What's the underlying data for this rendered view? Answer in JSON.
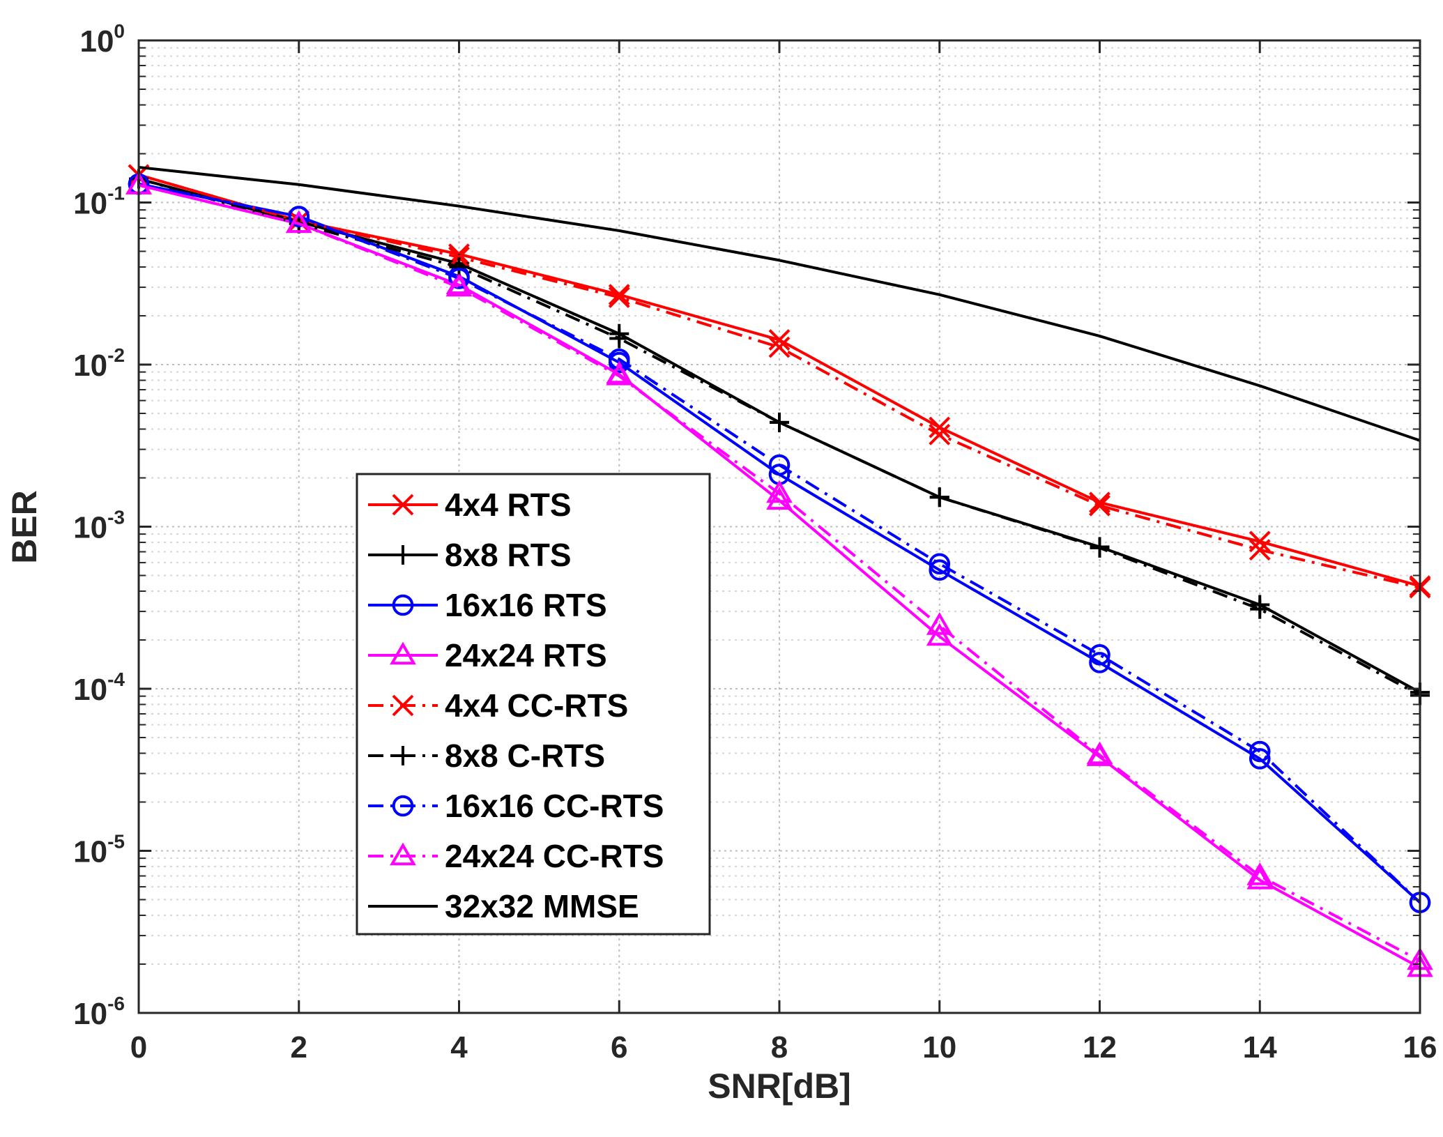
{
  "chart_data": {
    "type": "line",
    "yscale": "log",
    "xlabel": "SNR[dB]",
    "ylabel": "BER",
    "xlim": [
      0,
      16
    ],
    "ylim": [
      1e-06,
      1
    ],
    "x_ticks": [
      "0",
      "2",
      "4",
      "6",
      "8",
      "10",
      "12",
      "14",
      "16"
    ],
    "y_ticks": [
      {
        "base": "10",
        "exp": "-6"
      },
      {
        "base": "10",
        "exp": "-5"
      },
      {
        "base": "10",
        "exp": "-4"
      },
      {
        "base": "10",
        "exp": "-3"
      },
      {
        "base": "10",
        "exp": "-2"
      },
      {
        "base": "10",
        "exp": "-1"
      },
      {
        "base": "10",
        "exp": "0"
      }
    ],
    "grid": true,
    "legend_position": "center-left",
    "series": [
      {
        "name": "4x4 RTS",
        "color": "#ff0000",
        "dash": "solid",
        "marker": "x",
        "x": [
          0,
          2,
          4,
          6,
          8,
          10,
          12,
          14,
          16
        ],
        "values": [
          0.148,
          0.077,
          0.048,
          0.027,
          0.0142,
          0.0041,
          0.00141,
          0.00081,
          0.00043
        ]
      },
      {
        "name": "8x8 RTS",
        "color": "#000000",
        "dash": "solid",
        "marker": "plus",
        "x": [
          0,
          2,
          4,
          6,
          8,
          10,
          12,
          14,
          16
        ],
        "values": [
          0.14,
          0.076,
          0.042,
          0.0155,
          0.0044,
          0.00152,
          0.00075,
          0.00033,
          9.5e-05
        ]
      },
      {
        "name": "16x16 RTS",
        "color": "#0000ff",
        "dash": "solid",
        "marker": "circle",
        "x": [
          0,
          2,
          4,
          6,
          8,
          10,
          12,
          14,
          16
        ],
        "values": [
          0.13,
          0.082,
          0.035,
          0.0103,
          0.0021,
          0.00054,
          0.000145,
          3.7e-05,
          4.8e-06
        ]
      },
      {
        "name": "24x24 RTS",
        "color": "#ff00ff",
        "dash": "solid",
        "marker": "triangle",
        "x": [
          0,
          2,
          4,
          6,
          8,
          10,
          12,
          14,
          16
        ],
        "values": [
          0.128,
          0.074,
          0.031,
          0.0087,
          0.00145,
          0.00021,
          3.8e-05,
          6.6e-06,
          1.9e-06
        ]
      },
      {
        "name": "4x4 CC-RTS",
        "color": "#ff0000",
        "dash": "dashdot",
        "marker": "x",
        "x": [
          0,
          2,
          4,
          6,
          8,
          10,
          12,
          14,
          16
        ],
        "values": [
          0.148,
          0.077,
          0.046,
          0.026,
          0.0128,
          0.0037,
          0.00135,
          0.00072,
          0.00042
        ]
      },
      {
        "name": "8x8 C-RTS",
        "color": "#000000",
        "dash": "dashdot",
        "marker": "plus",
        "x": [
          0,
          2,
          4,
          6,
          8,
          10,
          12,
          14,
          16
        ],
        "values": [
          0.14,
          0.074,
          0.04,
          0.0145,
          0.0044,
          0.00152,
          0.00074,
          0.00031,
          9.1e-05
        ]
      },
      {
        "name": "16x16 CC-RTS",
        "color": "#0000ff",
        "dash": "dashdot",
        "marker": "circle",
        "x": [
          0,
          2,
          4,
          6,
          8,
          10,
          12,
          14,
          16
        ],
        "values": [
          0.13,
          0.082,
          0.034,
          0.0108,
          0.0024,
          0.00059,
          0.000162,
          4.1e-05,
          4.8e-06
        ]
      },
      {
        "name": "24x24 CC-RTS",
        "color": "#ff00ff",
        "dash": "dashdot",
        "marker": "triangle",
        "x": [
          0,
          2,
          4,
          6,
          8,
          10,
          12,
          14,
          16
        ],
        "values": [
          0.128,
          0.074,
          0.03,
          0.0085,
          0.0016,
          0.000245,
          3.9e-05,
          7e-06,
          2.1e-06
        ]
      },
      {
        "name": "32x32 MMSE",
        "color": "#000000",
        "dash": "solid",
        "marker": "none",
        "x": [
          0,
          2,
          4,
          6,
          8,
          10,
          12,
          14,
          16
        ],
        "values": [
          0.165,
          0.129,
          0.095,
          0.067,
          0.044,
          0.027,
          0.015,
          0.0074,
          0.0034
        ]
      }
    ]
  }
}
